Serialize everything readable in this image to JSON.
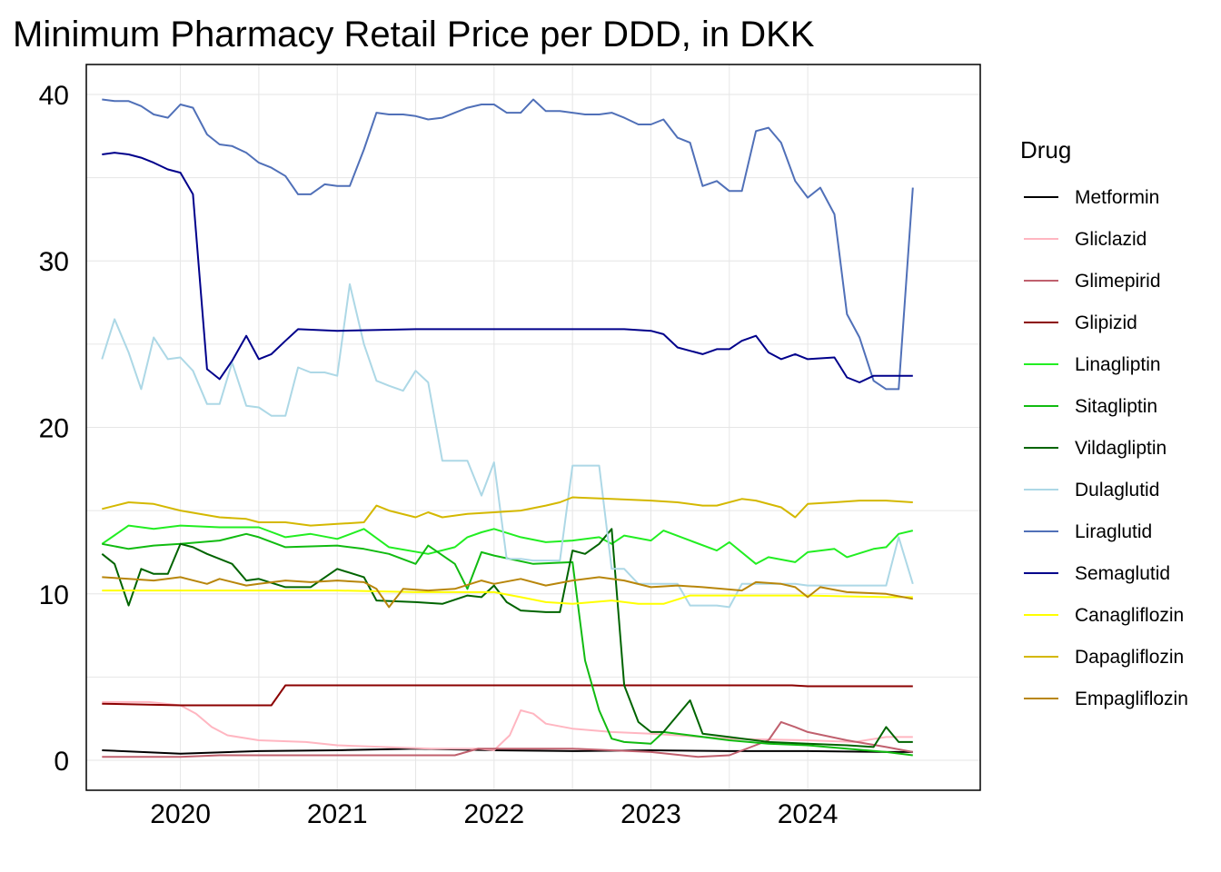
{
  "chart_data": {
    "type": "line",
    "title": "Minimum Pharmacy Retail Price per DDD, in DKK",
    "xlabel": "",
    "ylabel": "",
    "xlim": [
      2019.4,
      2025.1
    ],
    "ylim": [
      -1.8,
      41.8
    ],
    "x_ticks": [
      2020,
      2021,
      2022,
      2023,
      2024
    ],
    "x_tick_labels": [
      "2020",
      "2021",
      "2022",
      "2023",
      "2024"
    ],
    "y_ticks": [
      0,
      10,
      20,
      30,
      40
    ],
    "y_tick_labels": [
      "0",
      "10",
      "20",
      "30",
      "40"
    ],
    "grid": true,
    "legend_title": "Drug",
    "legend_position": "right",
    "series": [
      {
        "name": "Metformin",
        "color": "#000000",
        "x": [
          2019.5,
          2020.0,
          2020.5,
          2021.0,
          2021.5,
          2022.0,
          2022.5,
          2023.0,
          2023.5,
          2024.0,
          2024.5,
          2024.67
        ],
        "y": [
          0.6,
          0.4,
          0.55,
          0.6,
          0.7,
          0.6,
          0.55,
          0.6,
          0.55,
          0.55,
          0.5,
          0.5
        ]
      },
      {
        "name": "Gliclazid",
        "color": "#ffb6c1",
        "x": [
          2019.5,
          2019.8,
          2020.0,
          2020.1,
          2020.2,
          2020.3,
          2020.5,
          2020.8,
          2021.0,
          2021.3,
          2021.6,
          2021.9,
          2022.0,
          2022.1,
          2022.17,
          2022.25,
          2022.33,
          2022.5,
          2022.75,
          2023.0,
          2023.5,
          2024.0,
          2024.3,
          2024.5,
          2024.67
        ],
        "y": [
          3.5,
          3.5,
          3.3,
          2.8,
          2.0,
          1.5,
          1.2,
          1.1,
          0.9,
          0.8,
          0.7,
          0.7,
          0.6,
          1.5,
          3.0,
          2.8,
          2.2,
          1.9,
          1.7,
          1.6,
          1.3,
          1.2,
          1.1,
          1.4,
          1.4
        ]
      },
      {
        "name": "Glimepirid",
        "color": "#c0606e",
        "x": [
          2019.5,
          2020.0,
          2020.25,
          2021.0,
          2021.5,
          2021.75,
          2021.9,
          2022.0,
          2022.25,
          2022.5,
          2022.75,
          2023.0,
          2023.3,
          2023.5,
          2023.75,
          2023.83,
          2023.92,
          2024.0,
          2024.25,
          2024.5,
          2024.67
        ],
        "y": [
          0.2,
          0.2,
          0.3,
          0.3,
          0.3,
          0.3,
          0.7,
          0.7,
          0.7,
          0.7,
          0.6,
          0.5,
          0.2,
          0.3,
          1.2,
          2.3,
          2.0,
          1.7,
          1.2,
          0.8,
          0.5
        ]
      },
      {
        "name": "Glipizid",
        "color": "#8b0000",
        "x": [
          2019.5,
          2020.0,
          2020.58,
          2020.67,
          2021.0,
          2022.0,
          2023.0,
          2023.9,
          2024.0,
          2024.67
        ],
        "y": [
          3.4,
          3.3,
          3.3,
          4.5,
          4.5,
          4.5,
          4.5,
          4.5,
          4.45,
          4.45
        ]
      },
      {
        "name": "Linagliptin",
        "color": "#22ee22",
        "x": [
          2019.5,
          2019.67,
          2019.83,
          2020.0,
          2020.25,
          2020.5,
          2020.67,
          2020.83,
          2021.0,
          2021.17,
          2021.33,
          2021.58,
          2021.75,
          2021.83,
          2021.92,
          2022.0,
          2022.17,
          2022.33,
          2022.5,
          2022.67,
          2022.75,
          2022.83,
          2023.0,
          2023.08,
          2023.25,
          2023.42,
          2023.5,
          2023.67,
          2023.75,
          2023.92,
          2024.0,
          2024.17,
          2024.25,
          2024.42,
          2024.5,
          2024.58,
          2024.67
        ],
        "y": [
          13.0,
          14.1,
          13.9,
          14.1,
          14.0,
          14.0,
          13.4,
          13.6,
          13.3,
          13.9,
          12.8,
          12.4,
          12.8,
          13.4,
          13.7,
          13.9,
          13.4,
          13.1,
          13.2,
          13.4,
          13.0,
          13.5,
          13.2,
          13.8,
          13.2,
          12.6,
          13.1,
          11.8,
          12.2,
          11.9,
          12.5,
          12.7,
          12.2,
          12.7,
          12.8,
          13.6,
          13.8
        ]
      },
      {
        "name": "Sitagliptin",
        "color": "#11bb11",
        "x": [
          2019.5,
          2019.67,
          2019.83,
          2020.0,
          2020.25,
          2020.42,
          2020.5,
          2020.67,
          2021.0,
          2021.17,
          2021.33,
          2021.5,
          2021.58,
          2021.75,
          2021.83,
          2021.92,
          2022.0,
          2022.25,
          2022.5,
          2022.58,
          2022.67,
          2022.75,
          2022.83,
          2023.0,
          2023.08,
          2023.25,
          2023.5,
          2023.75,
          2024.0,
          2024.25,
          2024.5,
          2024.67
        ],
        "y": [
          13.0,
          12.7,
          12.9,
          13.0,
          13.2,
          13.6,
          13.4,
          12.8,
          12.9,
          12.7,
          12.4,
          11.8,
          12.9,
          11.8,
          10.3,
          12.5,
          12.3,
          11.8,
          11.9,
          6.0,
          3.0,
          1.3,
          1.1,
          1.0,
          1.7,
          1.5,
          1.2,
          1.0,
          0.9,
          0.7,
          0.5,
          0.3
        ]
      },
      {
        "name": "Vildagliptin",
        "color": "#006400",
        "x": [
          2019.5,
          2019.58,
          2019.67,
          2019.75,
          2019.83,
          2019.92,
          2020.0,
          2020.08,
          2020.17,
          2020.33,
          2020.42,
          2020.5,
          2020.67,
          2020.83,
          2021.0,
          2021.17,
          2021.25,
          2021.5,
          2021.67,
          2021.83,
          2021.92,
          2022.0,
          2022.08,
          2022.17,
          2022.33,
          2022.42,
          2022.5,
          2022.58,
          2022.67,
          2022.75,
          2022.83,
          2022.92,
          2023.0,
          2023.08,
          2023.25,
          2023.33,
          2023.5,
          2023.75,
          2024.0,
          2024.25,
          2024.42,
          2024.5,
          2024.58,
          2024.67
        ],
        "y": [
          12.4,
          11.8,
          9.3,
          11.5,
          11.2,
          11.2,
          13.0,
          12.8,
          12.4,
          11.8,
          10.8,
          10.9,
          10.4,
          10.4,
          11.5,
          11.0,
          9.6,
          9.5,
          9.4,
          9.9,
          9.8,
          10.5,
          9.5,
          9.0,
          8.9,
          8.9,
          12.6,
          12.4,
          13.0,
          13.9,
          4.5,
          2.3,
          1.7,
          1.7,
          3.6,
          1.6,
          1.4,
          1.1,
          1.0,
          0.9,
          0.8,
          2.0,
          1.1,
          1.1
        ]
      },
      {
        "name": "Dulaglutid",
        "color": "#add8e6",
        "x": [
          2019.5,
          2019.58,
          2019.67,
          2019.75,
          2019.83,
          2019.92,
          2020.0,
          2020.08,
          2020.17,
          2020.25,
          2020.33,
          2020.42,
          2020.5,
          2020.58,
          2020.67,
          2020.75,
          2020.83,
          2020.92,
          2021.0,
          2021.08,
          2021.17,
          2021.25,
          2021.33,
          2021.42,
          2021.5,
          2021.58,
          2021.67,
          2021.75,
          2021.83,
          2021.92,
          2022.0,
          2022.08,
          2022.17,
          2022.25,
          2022.33,
          2022.42,
          2022.5,
          2022.58,
          2022.67,
          2022.75,
          2022.83,
          2022.92,
          2023.0,
          2023.08,
          2023.17,
          2023.25,
          2023.42,
          2023.5,
          2023.58,
          2023.67,
          2023.75,
          2023.83,
          2023.92,
          2024.0,
          2024.25,
          2024.42,
          2024.5,
          2024.58,
          2024.67
        ],
        "y": [
          24.1,
          26.5,
          24.5,
          22.3,
          25.4,
          24.1,
          24.2,
          23.4,
          21.4,
          21.4,
          23.9,
          21.3,
          21.2,
          20.7,
          20.7,
          23.6,
          23.3,
          23.3,
          23.1,
          28.6,
          25.0,
          22.8,
          22.5,
          22.2,
          23.4,
          22.7,
          18.0,
          18.0,
          18.0,
          15.9,
          17.9,
          12.1,
          12.1,
          12.0,
          12.0,
          12.0,
          17.7,
          17.7,
          17.7,
          11.5,
          11.5,
          10.6,
          10.6,
          10.6,
          10.6,
          9.3,
          9.3,
          9.2,
          10.6,
          10.6,
          10.6,
          10.6,
          10.6,
          10.5,
          10.5,
          10.5,
          10.5,
          13.4,
          10.6
        ]
      },
      {
        "name": "Liraglutid",
        "color": "#5070b8",
        "x": [
          2019.5,
          2019.58,
          2019.67,
          2019.75,
          2019.83,
          2019.92,
          2020.0,
          2020.08,
          2020.17,
          2020.25,
          2020.33,
          2020.42,
          2020.5,
          2020.58,
          2020.67,
          2020.75,
          2020.83,
          2020.92,
          2021.0,
          2021.08,
          2021.17,
          2021.25,
          2021.33,
          2021.42,
          2021.5,
          2021.58,
          2021.67,
          2021.75,
          2021.83,
          2021.92,
          2022.0,
          2022.08,
          2022.17,
          2022.25,
          2022.33,
          2022.42,
          2022.5,
          2022.58,
          2022.67,
          2022.75,
          2022.83,
          2022.92,
          2023.0,
          2023.08,
          2023.17,
          2023.25,
          2023.33,
          2023.42,
          2023.5,
          2023.58,
          2023.67,
          2023.75,
          2023.83,
          2023.92,
          2024.0,
          2024.08,
          2024.17,
          2024.25,
          2024.33,
          2024.42,
          2024.5,
          2024.58,
          2024.67
        ],
        "y": [
          39.7,
          39.6,
          39.6,
          39.3,
          38.8,
          38.6,
          39.4,
          39.2,
          37.6,
          37.0,
          36.9,
          36.5,
          35.9,
          35.6,
          35.1,
          34.0,
          34.0,
          34.6,
          34.5,
          34.5,
          36.7,
          38.9,
          38.8,
          38.8,
          38.7,
          38.5,
          38.6,
          38.9,
          39.2,
          39.4,
          39.4,
          38.9,
          38.9,
          39.7,
          39.0,
          39.0,
          38.9,
          38.8,
          38.8,
          38.9,
          38.6,
          38.2,
          38.2,
          38.5,
          37.4,
          37.1,
          34.5,
          34.8,
          34.2,
          34.2,
          37.8,
          38.0,
          37.1,
          34.8,
          33.8,
          34.4,
          32.8,
          26.8,
          25.4,
          22.8,
          22.3,
          22.3,
          34.4
        ]
      },
      {
        "name": "Semaglutid",
        "color": "#00008b",
        "x": [
          2019.5,
          2019.58,
          2019.67,
          2019.75,
          2019.83,
          2019.92,
          2020.0,
          2020.08,
          2020.17,
          2020.25,
          2020.33,
          2020.42,
          2020.5,
          2020.58,
          2020.67,
          2020.75,
          2021.0,
          2021.5,
          2022.0,
          2022.5,
          2022.83,
          2023.0,
          2023.08,
          2023.17,
          2023.33,
          2023.42,
          2023.5,
          2023.58,
          2023.67,
          2023.75,
          2023.83,
          2023.92,
          2024.0,
          2024.17,
          2024.25,
          2024.33,
          2024.42,
          2024.5,
          2024.67
        ],
        "y": [
          36.4,
          36.5,
          36.4,
          36.2,
          35.9,
          35.5,
          35.3,
          34.0,
          23.5,
          22.9,
          24.0,
          25.5,
          24.1,
          24.4,
          25.2,
          25.9,
          25.8,
          25.9,
          25.9,
          25.9,
          25.9,
          25.8,
          25.6,
          24.8,
          24.4,
          24.7,
          24.7,
          25.2,
          25.5,
          24.5,
          24.1,
          24.4,
          24.1,
          24.2,
          23.0,
          22.7,
          23.1,
          23.1,
          23.1
        ]
      },
      {
        "name": "Canagliflozin",
        "color": "#ffff00",
        "x": [
          2019.5,
          2020.0,
          2020.5,
          2021.0,
          2021.5,
          2022.0,
          2022.17,
          2022.33,
          2022.5,
          2022.75,
          2022.92,
          2023.08,
          2023.25,
          2023.5,
          2024.0,
          2024.5,
          2024.67
        ],
        "y": [
          10.2,
          10.2,
          10.2,
          10.2,
          10.1,
          10.1,
          9.8,
          9.5,
          9.4,
          9.6,
          9.4,
          9.4,
          9.9,
          9.9,
          9.9,
          9.8,
          9.8
        ]
      },
      {
        "name": "Dapagliflozin",
        "color": "#d4b800",
        "x": [
          2019.5,
          2019.67,
          2019.83,
          2020.0,
          2020.25,
          2020.42,
          2020.5,
          2020.67,
          2020.83,
          2021.0,
          2021.17,
          2021.25,
          2021.33,
          2021.5,
          2021.58,
          2021.67,
          2021.83,
          2022.0,
          2022.17,
          2022.33,
          2022.42,
          2022.5,
          2022.75,
          2023.0,
          2023.17,
          2023.33,
          2023.42,
          2023.58,
          2023.67,
          2023.83,
          2023.92,
          2024.0,
          2024.17,
          2024.33,
          2024.5,
          2024.67
        ],
        "y": [
          15.1,
          15.5,
          15.4,
          15.0,
          14.6,
          14.5,
          14.3,
          14.3,
          14.1,
          14.2,
          14.3,
          15.3,
          15.0,
          14.6,
          14.9,
          14.6,
          14.8,
          14.9,
          15.0,
          15.3,
          15.5,
          15.8,
          15.7,
          15.6,
          15.5,
          15.3,
          15.3,
          15.7,
          15.6,
          15.2,
          14.6,
          15.4,
          15.5,
          15.6,
          15.6,
          15.5
        ]
      },
      {
        "name": "Empagliflozin",
        "color": "#b8860b",
        "x": [
          2019.5,
          2019.67,
          2019.83,
          2020.0,
          2020.17,
          2020.25,
          2020.42,
          2020.5,
          2020.67,
          2020.83,
          2021.0,
          2021.17,
          2021.25,
          2021.33,
          2021.42,
          2021.58,
          2021.75,
          2021.92,
          2022.0,
          2022.17,
          2022.33,
          2022.5,
          2022.67,
          2022.83,
          2023.0,
          2023.17,
          2023.33,
          2023.58,
          2023.67,
          2023.83,
          2023.92,
          2024.0,
          2024.08,
          2024.25,
          2024.5,
          2024.67
        ],
        "y": [
          11.0,
          10.9,
          10.8,
          11.0,
          10.6,
          10.9,
          10.5,
          10.6,
          10.8,
          10.7,
          10.8,
          10.7,
          10.3,
          9.2,
          10.3,
          10.2,
          10.3,
          10.8,
          10.6,
          10.9,
          10.5,
          10.8,
          11.0,
          10.8,
          10.4,
          10.5,
          10.4,
          10.2,
          10.7,
          10.6,
          10.4,
          9.8,
          10.4,
          10.1,
          10.0,
          9.7
        ]
      }
    ]
  }
}
